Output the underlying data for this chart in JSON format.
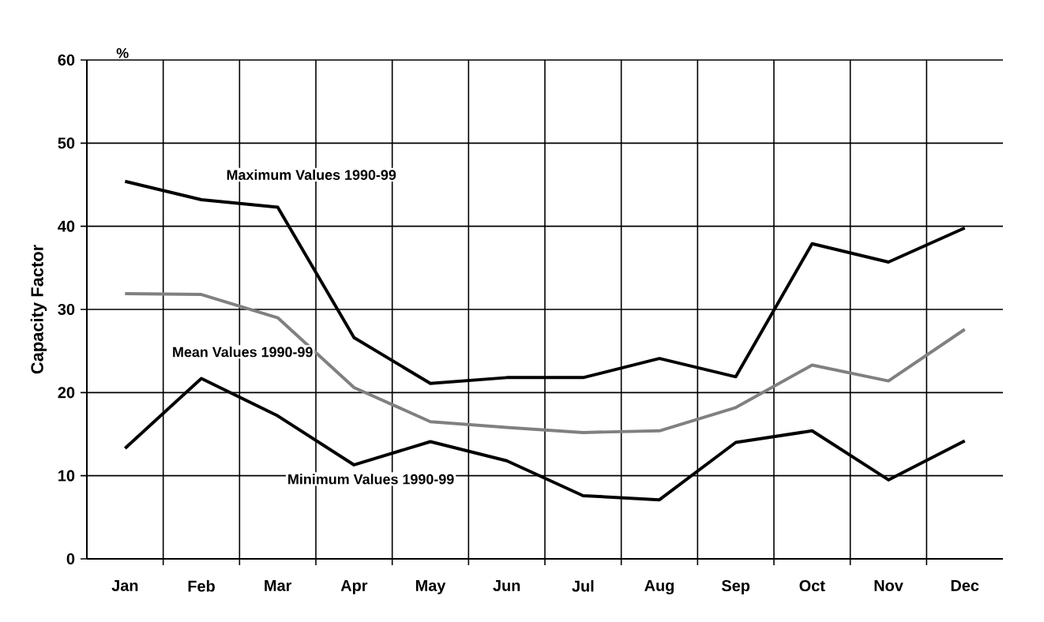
{
  "chart_data": {
    "type": "line",
    "ylabel": "Capacity Factor",
    "categories": [
      "Jan",
      "Feb",
      "Mar",
      "Apr",
      "May",
      "Jun",
      "Jul",
      "Aug",
      "Sep",
      "Oct",
      "Nov",
      "Dec"
    ],
    "series": [
      {
        "color": "#000000",
        "values": [
          45.4,
          43.2,
          42.3,
          26.6,
          21.1,
          21.8,
          21.8,
          24.1,
          21.9,
          37.9,
          35.7,
          39.8
        ]
      },
      {
        "color": "#808080",
        "values": [
          31.9,
          31.8,
          29.0,
          20.6,
          16.5,
          15.8,
          15.2,
          15.4,
          18.2,
          23.3,
          21.4,
          27.6
        ]
      },
      {
        "color": "#000000",
        "values": [
          13.3,
          21.7,
          17.2,
          11.3,
          14.1,
          11.8,
          7.6,
          7.1,
          14.0,
          15.4,
          9.5,
          14.2
        ]
      }
    ],
    "ylim": [
      0,
      60
    ],
    "yticks": [
      0,
      10,
      20,
      30,
      40,
      50,
      60
    ],
    "grid": true,
    "annotations": [
      "%",
      "Maximum Values 1990-99",
      "Mean Values 1990-99",
      "Minimum Values 1990-99"
    ]
  }
}
